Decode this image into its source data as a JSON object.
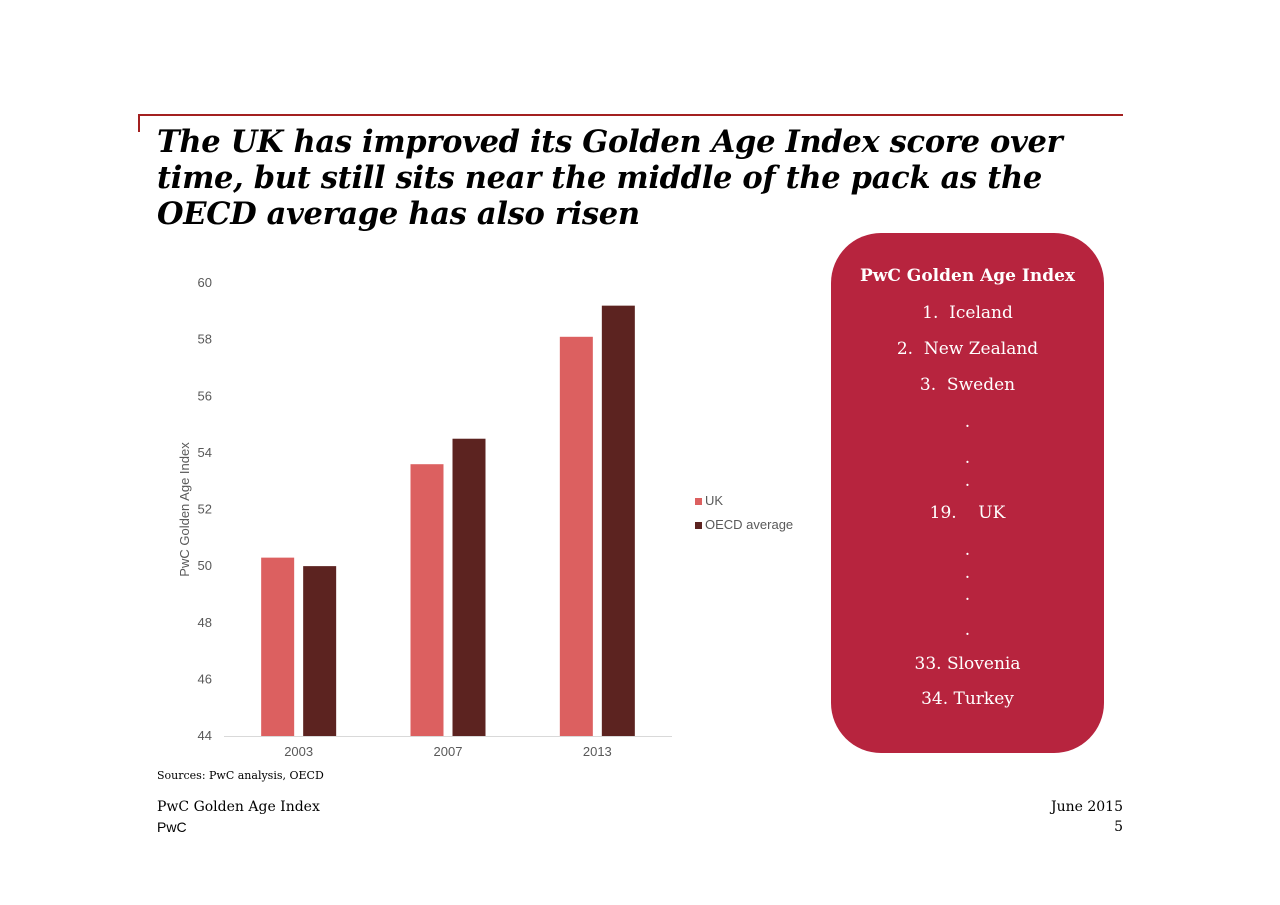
{
  "slide": {
    "title": "The UK has improved its Golden Age Index score over time, but still sits near the middle of the pack as the OECD average has also risen",
    "sources": "Sources: PwC analysis, OECD",
    "footer_left_1": "PwC Golden Age Index",
    "footer_left_2": "PwC",
    "footer_right_1": "June 2015",
    "footer_right_2": "5"
  },
  "colors": {
    "accent_rule": "#a32020",
    "panel_bg": "#b7243e",
    "uk": "#dc6060",
    "oecd": "#5c2320"
  },
  "chart_data": {
    "type": "bar",
    "title": "",
    "xlabel": "",
    "ylabel": "PwC Golden Age Index",
    "categories": [
      "2003",
      "2007",
      "2013"
    ],
    "series": [
      {
        "name": "UK",
        "color": "#dc6060",
        "values": [
          50.3,
          53.6,
          58.1
        ]
      },
      {
        "name": "OECD average",
        "color": "#5c2320",
        "values": [
          50.0,
          54.5,
          59.2
        ]
      }
    ],
    "ylim": [
      44,
      60
    ],
    "yticks": [
      44,
      46,
      48,
      50,
      52,
      54,
      56,
      58,
      60
    ],
    "grid": false,
    "legend": "right"
  },
  "panel": {
    "title": "PwC Golden Age Index",
    "items": [
      "1.  Iceland",
      "2.  New Zealand",
      "3.  Sweden",
      "19.    UK",
      "33. Slovenia",
      "34. Turkey"
    ],
    "dot": "."
  }
}
